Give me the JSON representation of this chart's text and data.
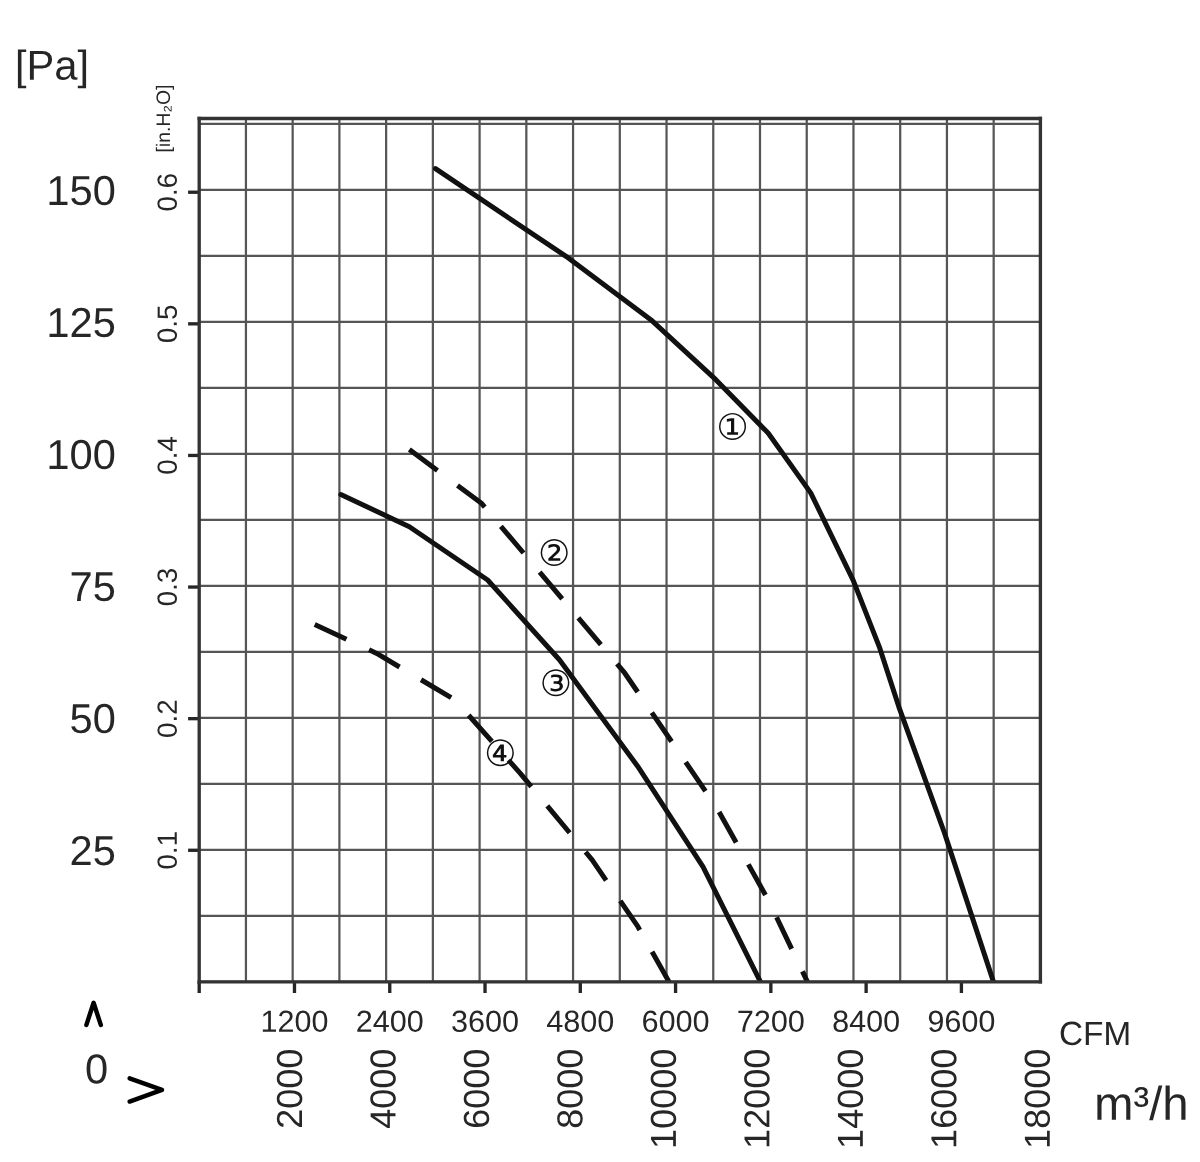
{
  "chart_data": {
    "type": "line",
    "xlabel": "CFM",
    "x2label": "m³/h",
    "ylabel": "[Pa]",
    "y2label": "[in.H₂O]",
    "xlim": [
      0,
      10595
    ],
    "xticks": [
      {
        "value": 0,
        "label": null
      },
      1200,
      2400,
      3600,
      4800,
      6000,
      7200,
      8400,
      9600
    ],
    "x2lim": [
      0,
      18000
    ],
    "x2ticks": [
      {
        "value": 1000,
        "label": null
      },
      2000,
      {
        "value": 3000,
        "label": null
      },
      4000,
      {
        "value": 5000,
        "label": null
      },
      6000,
      {
        "value": 7000,
        "label": null
      },
      8000,
      {
        "value": 9000,
        "label": null
      },
      10000,
      {
        "value": 11000,
        "label": null
      },
      12000,
      {
        "value": 13000,
        "label": null
      },
      14000,
      {
        "value": 15000,
        "label": null
      },
      16000,
      {
        "value": 17000,
        "label": null
      },
      18000
    ],
    "ylim": [
      0,
      163.5
    ],
    "yticks": [
      {
        "value": 0,
        "label": null
      },
      {
        "value": 12.5,
        "label": null
      },
      25,
      {
        "value": 37.5,
        "label": null
      },
      50,
      {
        "value": 62.5,
        "label": null
      },
      75,
      {
        "value": 87.5,
        "label": null
      },
      100,
      {
        "value": 112.5,
        "label": null
      },
      125,
      {
        "value": 137.5,
        "label": null
      },
      150,
      {
        "value": 162.5,
        "label": null
      }
    ],
    "y2lim": [
      0,
      0.656
    ],
    "y2ticks": [
      0.1,
      0.2,
      0.3,
      0.4,
      0.5,
      0.6
    ],
    "grid": true,
    "marker": "none",
    "series": [
      {
        "name": "①",
        "color": "#111111",
        "line_style": "solid",
        "x": [
          2976,
          4620,
          5688,
          6510,
          7168,
          7702,
          8236,
          8565,
          8812,
          9387,
          10004
        ],
        "values": [
          154.0,
          137.4,
          125.4,
          114.0,
          103.9,
          92.6,
          76.1,
          63.5,
          52.1,
          28.2,
          0
        ]
      },
      {
        "name": "②",
        "color": "#111111",
        "line_style": "dashed",
        "x": [
          2647,
          3551,
          4373,
          5359,
          6510,
          7168,
          7661
        ],
        "values": [
          100.8,
          90.7,
          76.1,
          58.5,
          33.2,
          15.5,
          0
        ]
      },
      {
        "name": "③",
        "color": "#111111",
        "line_style": "solid",
        "x": [
          1784,
          2647,
          3633,
          4537,
          5524,
          6346,
          7069
        ],
        "values": [
          92.3,
          86.2,
          76.1,
          61.0,
          40.8,
          21.8,
          0
        ]
      },
      {
        "name": "④",
        "color": "#111111",
        "line_style": "dashed",
        "x": [
          1455,
          2236,
          3222,
          4044,
          4949,
          5524,
          5918
        ],
        "values": [
          67.7,
          62.2,
          53.4,
          39.5,
          23.1,
          10.5,
          0
        ]
      }
    ],
    "annotations": [
      "0"
    ]
  }
}
